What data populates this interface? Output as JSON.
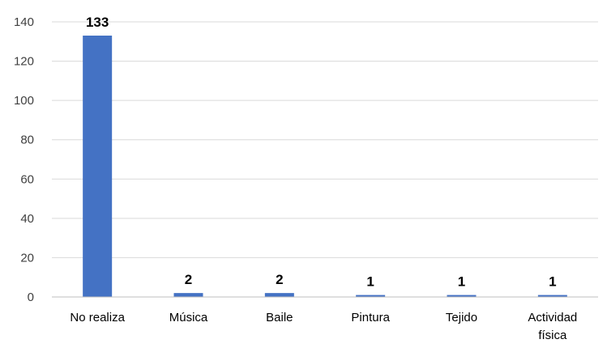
{
  "chart_data": {
    "type": "bar",
    "categories": [
      "No realiza",
      "Música",
      "Baile",
      "Pintura",
      "Tejido",
      "Actividad física"
    ],
    "category_lines": [
      [
        "No realiza"
      ],
      [
        "Música"
      ],
      [
        "Baile"
      ],
      [
        "Pintura"
      ],
      [
        "Tejido"
      ],
      [
        "Actividad",
        "física"
      ]
    ],
    "values": [
      133,
      2,
      2,
      1,
      1,
      1
    ],
    "data_labels": [
      "133",
      "2",
      "2",
      "1",
      "1",
      "1"
    ],
    "ylim": [
      0,
      140
    ],
    "yticks": [
      0,
      20,
      40,
      60,
      80,
      100,
      120,
      140
    ],
    "ytick_labels": [
      "0",
      "20",
      "40",
      "60",
      "80",
      "100",
      "120",
      "140"
    ],
    "grid": true,
    "legend": "none",
    "bar_color": "#4472c4"
  }
}
